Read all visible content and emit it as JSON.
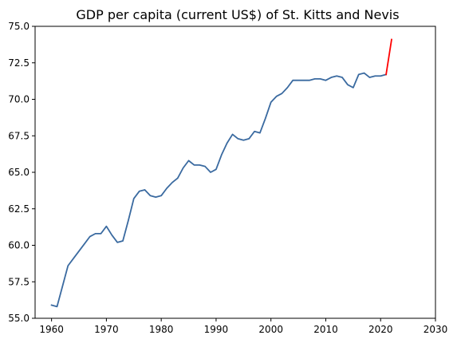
{
  "chart_data": {
    "type": "line",
    "title": "GDP per capita (current US$) of St. Kitts and Nevis",
    "xlabel": "",
    "ylabel": "",
    "xlim": [
      1957,
      2030
    ],
    "ylim": [
      55.0,
      75.0
    ],
    "xticks": [
      1960,
      1970,
      1980,
      1990,
      2000,
      2010,
      2020,
      2030
    ],
    "yticks": [
      55.0,
      57.5,
      60.0,
      62.5,
      65.0,
      67.5,
      70.0,
      72.5,
      75.0
    ],
    "xtick_labels": [
      "1960",
      "1970",
      "1980",
      "1990",
      "2000",
      "2010",
      "2020",
      "2030"
    ],
    "ytick_labels": [
      "55.0",
      "57.5",
      "60.0",
      "62.5",
      "65.0",
      "67.5",
      "70.0",
      "72.5",
      "75.0"
    ],
    "grid": false,
    "series": [
      {
        "color": "#3a6aa0",
        "x": [
          1960,
          1961,
          1962,
          1963,
          1964,
          1965,
          1966,
          1967,
          1968,
          1969,
          1970,
          1971,
          1972,
          1973,
          1974,
          1975,
          1976,
          1977,
          1978,
          1979,
          1980,
          1981,
          1982,
          1983,
          1984,
          1985,
          1986,
          1987,
          1988,
          1989,
          1990,
          1991,
          1992,
          1993,
          1994,
          1995,
          1996,
          1997,
          1998,
          1999,
          2000,
          2001,
          2002,
          2003,
          2004,
          2005,
          2006,
          2007,
          2008,
          2009,
          2010,
          2011,
          2012,
          2013,
          2014,
          2015,
          2016,
          2017,
          2018,
          2019,
          2020,
          2021
        ],
        "y": [
          55.9,
          55.8,
          57.2,
          58.6,
          59.1,
          59.6,
          60.1,
          60.6,
          60.8,
          60.8,
          61.3,
          60.7,
          60.2,
          60.3,
          61.7,
          63.2,
          63.7,
          63.8,
          63.4,
          63.3,
          63.4,
          63.9,
          64.3,
          64.6,
          65.3,
          65.8,
          65.5,
          65.5,
          65.4,
          65.0,
          65.2,
          66.2,
          67.0,
          67.6,
          67.3,
          67.2,
          67.3,
          67.8,
          67.7,
          68.7,
          69.8,
          70.2,
          70.4,
          70.8,
          71.3,
          71.3,
          71.3,
          71.3,
          71.4,
          71.4,
          71.3,
          71.5,
          71.6,
          71.5,
          71.0,
          70.8,
          71.7,
          71.8,
          71.5,
          71.6,
          71.6,
          71.7
        ]
      },
      {
        "color": "#ff0000",
        "x": [
          2021,
          2022
        ],
        "y": [
          71.7,
          74.1
        ]
      }
    ]
  }
}
